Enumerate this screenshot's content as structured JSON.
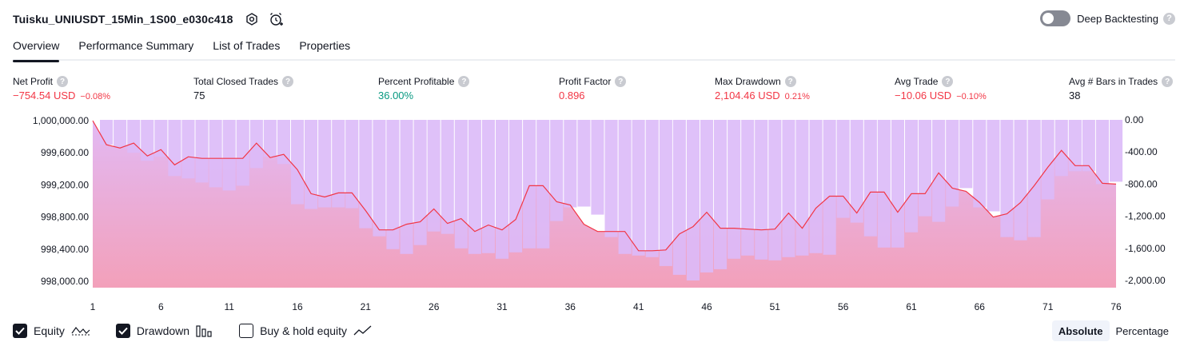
{
  "header": {
    "strategy_name": "Tuisku_UNIUSDT_15Min_1S00_e030c418",
    "settings_icon": "gear-icon",
    "alert_icon": "alarm-clock-plus-icon",
    "deep_backtesting_label": "Deep Backtesting",
    "deep_backtesting_enabled": false,
    "help_glyph": "?"
  },
  "tabs": [
    {
      "label": "Overview",
      "active": true
    },
    {
      "label": "Performance Summary",
      "active": false
    },
    {
      "label": "List of Trades",
      "active": false
    },
    {
      "label": "Properties",
      "active": false
    }
  ],
  "metrics": [
    {
      "label": "Net Profit",
      "value": "−754.54 USD",
      "sub": "−0.08%",
      "tone": "neg"
    },
    {
      "label": "Total Closed Trades",
      "value": "75",
      "sub": "",
      "tone": "neutral"
    },
    {
      "label": "Percent Profitable",
      "value": "36.00%",
      "sub": "",
      "tone": "pos"
    },
    {
      "label": "Profit Factor",
      "value": "0.896",
      "sub": "",
      "tone": "neg"
    },
    {
      "label": "Max Drawdown",
      "value": "2,104.46 USD",
      "sub": "0.21%",
      "tone": "neg"
    },
    {
      "label": "Avg Trade",
      "value": "−10.06 USD",
      "sub": "−0.10%",
      "tone": "neg"
    },
    {
      "label": "Avg # Bars in Trades",
      "value": "38",
      "sub": "",
      "tone": "neutral"
    }
  ],
  "chart_data": {
    "type": "area",
    "x_ticks": [
      "1",
      "6",
      "11",
      "16",
      "21",
      "26",
      "31",
      "36",
      "41",
      "46",
      "51",
      "56",
      "61",
      "66",
      "71",
      "76"
    ],
    "left_axis": {
      "ticks": [
        "1,000,000.00",
        "999,600.00",
        "999,200.00",
        "998,800.00",
        "998,400.00",
        "998,000.00"
      ],
      "ylim": [
        997920,
        1000010
      ]
    },
    "right_axis": {
      "ticks": [
        "0.00",
        "-400.00",
        "-800.00",
        "-1,200.00",
        "-1,600.00",
        "-2,000.00"
      ],
      "ylim": [
        -2090,
        0
      ]
    },
    "colors": {
      "equity_line": "#f23645",
      "equity_fill_top": "#e1b5f3",
      "equity_fill_bottom": "#f29bb6",
      "drawdown_bar": "#dcbaf8",
      "bar_gap": "#ffffff"
    },
    "series": [
      {
        "name": "Equity",
        "x": [
          1,
          2,
          3,
          4,
          5,
          6,
          7,
          8,
          9,
          10,
          11,
          12,
          13,
          14,
          15,
          16,
          17,
          18,
          19,
          20,
          21,
          22,
          23,
          24,
          25,
          26,
          27,
          28,
          29,
          30,
          31,
          32,
          33,
          34,
          35,
          36,
          37,
          38,
          39,
          40,
          41,
          42,
          43,
          44,
          45,
          46,
          47,
          48,
          49,
          50,
          51,
          52,
          53,
          54,
          55,
          56,
          57,
          58,
          59,
          60,
          61,
          62,
          63,
          64,
          65,
          66,
          67,
          68,
          69,
          70,
          71,
          72,
          73,
          74,
          75,
          76
        ],
        "values": [
          1000000,
          999700,
          999660,
          999720,
          999560,
          999640,
          999450,
          999550,
          999530,
          999530,
          999530,
          999530,
          999720,
          999540,
          999580,
          999390,
          999090,
          999050,
          999100,
          999100,
          998880,
          998640,
          998640,
          998710,
          998740,
          998900,
          998720,
          998780,
          998620,
          998700,
          998640,
          998770,
          999190,
          999190,
          998990,
          998950,
          998710,
          998620,
          998620,
          998620,
          998380,
          998380,
          998390,
          998590,
          998680,
          998860,
          998660,
          998660,
          998650,
          998640,
          998650,
          998850,
          998660,
          998910,
          999060,
          999060,
          998850,
          999110,
          999110,
          998860,
          999090,
          999090,
          999350,
          999160,
          999120,
          998980,
          998800,
          998840,
          998980,
          999190,
          999420,
          999630,
          999440,
          999440,
          999220,
          999210
        ]
      },
      {
        "name": "Drawdown",
        "values": [
          0,
          -310,
          -350,
          -410,
          -510,
          -460,
          -700,
          -730,
          -780,
          -840,
          -880,
          -820,
          -600,
          -460,
          -550,
          -1050,
          -1110,
          -1090,
          -1090,
          -1100,
          -1350,
          -1450,
          -1610,
          -1670,
          -1560,
          -1390,
          -1420,
          -1600,
          -1670,
          -1660,
          -1730,
          -1650,
          -1600,
          -1600,
          -1260,
          -1090,
          -1080,
          -1180,
          -1460,
          -1670,
          -1690,
          -1710,
          -1820,
          -1930,
          -2000,
          -1900,
          -1860,
          -1730,
          -1690,
          -1740,
          -1750,
          -1710,
          -1690,
          -1660,
          -1680,
          -1220,
          -1280,
          -1450,
          -1590,
          -1590,
          -1400,
          -1200,
          -1270,
          -1080,
          -850,
          -1090,
          -1140,
          -1460,
          -1500,
          -1460,
          -990,
          -700,
          -640,
          -640,
          -800,
          -770
        ]
      }
    ]
  },
  "legend": [
    {
      "label": "Equity",
      "checked": true,
      "icon": "equity-line-icon"
    },
    {
      "label": "Drawdown",
      "checked": true,
      "icon": "drawdown-bars-icon"
    },
    {
      "label": "Buy & hold equity",
      "checked": false,
      "icon": "buy-hold-line-icon"
    }
  ],
  "mode": {
    "absolute_label": "Absolute",
    "percentage_label": "Percentage",
    "selected": "Absolute"
  }
}
